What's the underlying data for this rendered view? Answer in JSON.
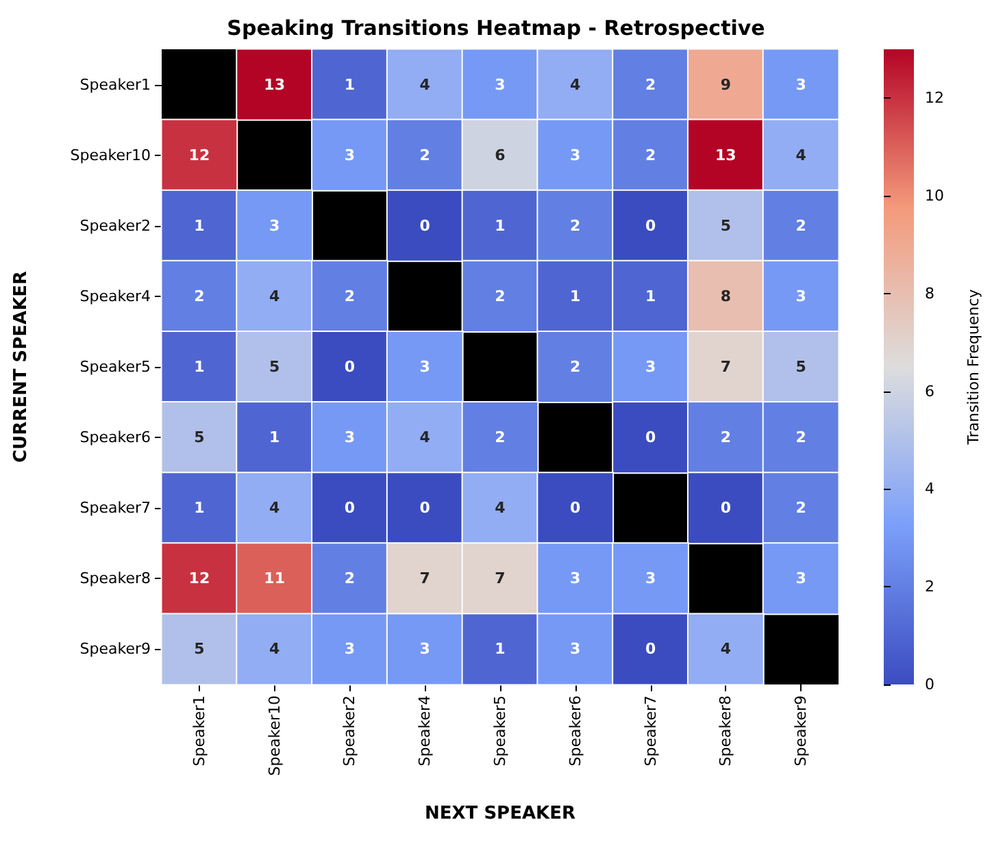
{
  "chart_data": {
    "type": "heatmap",
    "title": "Speaking Transitions Heatmap - Retrospective",
    "xlabel": "NEXT SPEAKER",
    "ylabel": "CURRENT SPEAKER",
    "clabel": "Transition Frequency",
    "categories": [
      "Speaker1",
      "Speaker10",
      "Speaker2",
      "Speaker4",
      "Speaker5",
      "Speaker6",
      "Speaker7",
      "Speaker8",
      "Speaker9"
    ],
    "y_categories": [
      "Speaker1",
      "Speaker10",
      "Speaker2",
      "Speaker4",
      "Speaker5",
      "Speaker6",
      "Speaker7",
      "Speaker8",
      "Speaker9"
    ],
    "cells": [
      [
        null,
        13,
        1,
        4,
        3,
        4,
        2,
        9,
        3
      ],
      [
        12,
        null,
        3,
        2,
        6,
        3,
        2,
        13,
        4
      ],
      [
        1,
        3,
        null,
        0,
        1,
        2,
        0,
        5,
        2
      ],
      [
        2,
        4,
        2,
        null,
        2,
        1,
        1,
        8,
        3
      ],
      [
        1,
        5,
        0,
        3,
        null,
        2,
        3,
        7,
        5
      ],
      [
        5,
        1,
        3,
        4,
        2,
        null,
        0,
        2,
        2
      ],
      [
        1,
        4,
        0,
        0,
        4,
        0,
        null,
        0,
        2
      ],
      [
        12,
        11,
        2,
        7,
        7,
        3,
        3,
        null,
        3
      ],
      [
        5,
        4,
        3,
        3,
        1,
        3,
        0,
        4,
        null
      ]
    ],
    "clim": [
      0,
      13
    ],
    "cticks": [
      0,
      2,
      4,
      6,
      8,
      10,
      12
    ],
    "data_labels": true
  }
}
